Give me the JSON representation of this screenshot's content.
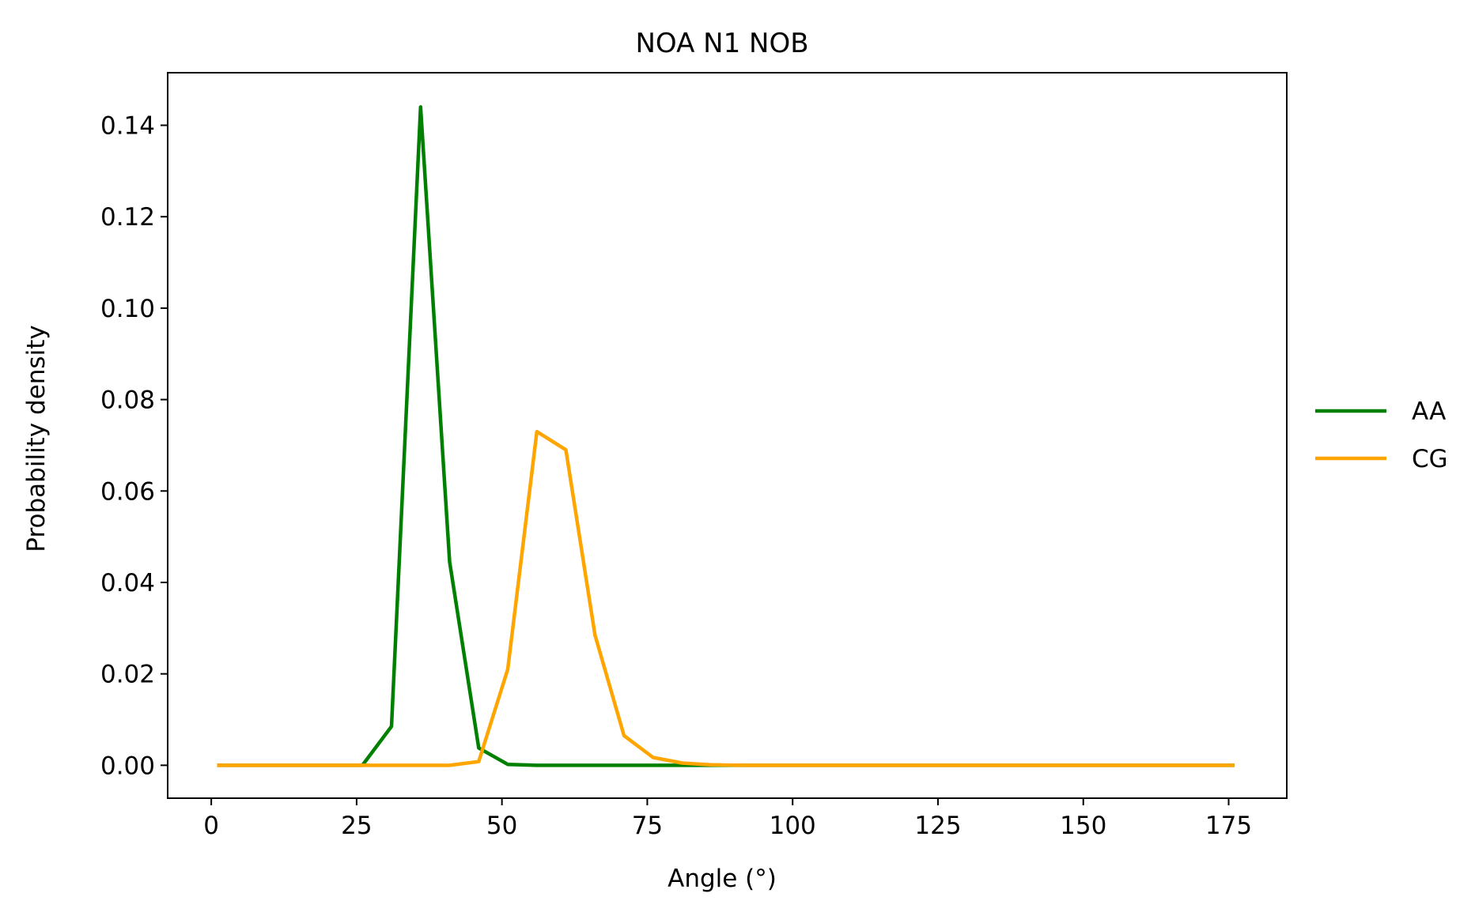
{
  "chart_data": {
    "type": "line",
    "title": "NOA N1 NOB",
    "xlabel": "Angle (°)",
    "ylabel": "Probability density",
    "xlim": [
      -7.5,
      185
    ],
    "ylim": [
      -0.0072,
      0.1515
    ],
    "xticks": [
      0,
      25,
      50,
      75,
      100,
      125,
      150,
      175
    ],
    "yticks": [
      0.0,
      0.02,
      0.04,
      0.06,
      0.08,
      0.1,
      0.12,
      0.14
    ],
    "xtick_labels": [
      "0",
      "25",
      "50",
      "75",
      "100",
      "125",
      "150",
      "175"
    ],
    "ytick_labels": [
      "0.00",
      "0.02",
      "0.04",
      "0.06",
      "0.08",
      "0.10",
      "0.12",
      "0.14"
    ],
    "grid": false,
    "legend_position": "center-right, outside plot",
    "x": [
      1,
      6,
      11,
      16,
      21,
      26,
      31,
      36,
      41,
      46,
      51,
      56,
      61,
      66,
      71,
      76,
      81,
      86,
      91,
      96,
      101,
      106,
      111,
      116,
      121,
      126,
      131,
      136,
      141,
      146,
      151,
      156,
      161,
      166,
      171,
      176
    ],
    "series": [
      {
        "name": "AA",
        "color": "#008000",
        "values": [
          0,
          0,
          0,
          0,
          0,
          0,
          0.0085,
          0.144,
          0.0445,
          0.0038,
          0.0002,
          0,
          0,
          0,
          0,
          0,
          0,
          0,
          0,
          0,
          0,
          0,
          0,
          0,
          0,
          0,
          0,
          0,
          0,
          0,
          0,
          0,
          0,
          0,
          0,
          0
        ]
      },
      {
        "name": "CG",
        "color": "#FFA500",
        "values": [
          0,
          0,
          0,
          0,
          0,
          0,
          0,
          0,
          0,
          0.0008,
          0.021,
          0.073,
          0.069,
          0.0285,
          0.0065,
          0.0017,
          0.0005,
          0.0001,
          0,
          0,
          0,
          0,
          0,
          0,
          0,
          0,
          0,
          0,
          0,
          0,
          0,
          0,
          0,
          0,
          0,
          0
        ]
      }
    ]
  }
}
